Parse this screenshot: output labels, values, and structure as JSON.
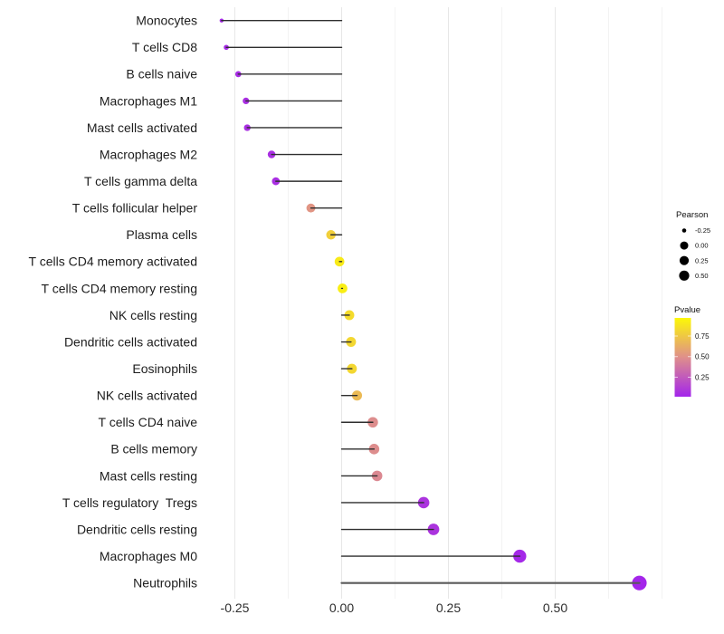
{
  "chart_data": {
    "type": "scatter",
    "variant": "lollipop",
    "orientation": "horizontal",
    "title": "",
    "xlabel": "",
    "ylabel": "",
    "categories": [
      "Monocytes",
      "T cells CD8",
      "B cells naive",
      "Macrophages M1",
      "Mast cells activated",
      "Macrophages M2",
      "T cells gamma delta",
      "T cells follicular helper",
      "Plasma cells",
      "T cells CD4 memory activated",
      "T cells CD4 memory resting",
      "NK cells resting",
      "Dendritic cells activated",
      "Eosinophils",
      "NK cells activated",
      "T cells CD4 naive",
      "B cells memory",
      "Mast cells resting",
      "T cells regulatory  Tregs",
      "Dendritic cells resting",
      "Macrophages M0",
      "Neutrophils"
    ],
    "series": [
      {
        "name": "Pearson",
        "values": [
          -0.281,
          -0.27,
          -0.242,
          -0.224,
          -0.221,
          -0.164,
          -0.154,
          -0.072,
          -0.025,
          -0.005,
          0.002,
          0.018,
          0.022,
          0.024,
          0.036,
          0.073,
          0.076,
          0.083,
          0.192,
          0.215,
          0.417,
          0.697
        ]
      },
      {
        "name": "Pvalue",
        "values": [
          0.03,
          0.04,
          0.05,
          0.06,
          0.06,
          0.06,
          0.06,
          0.52,
          0.8,
          0.93,
          0.95,
          0.86,
          0.84,
          0.84,
          0.7,
          0.48,
          0.48,
          0.46,
          0.08,
          0.08,
          0.03,
          0.02
        ]
      }
    ],
    "x_axis": {
      "tick_labels": [
        "-0.25",
        "0.00",
        "0.25",
        "0.50"
      ],
      "tick_values": [
        -0.25,
        0.0,
        0.25,
        0.5
      ],
      "minor_tick_values": [
        -0.125,
        0.125,
        0.375,
        0.625,
        0.75
      ],
      "range": [
        -0.33,
        0.755
      ],
      "grid": true
    },
    "encoding": {
      "size": "Pearson",
      "color": "Pvalue",
      "color_low": "#A020F0",
      "color_mid": "#E09189",
      "color_high": "#FFFF00"
    }
  },
  "legend": {
    "pearson": {
      "title": "Pearson",
      "break_labels": [
        "-0.25",
        "0.00",
        "0.25",
        "0.50"
      ],
      "break_values": [
        -0.25,
        0.0,
        0.25,
        0.5
      ]
    },
    "pvalue": {
      "title": "Pvalue",
      "tick_labels": [
        "0.75",
        "0.50",
        "0.25"
      ],
      "tick_values": [
        0.75,
        0.5,
        0.25
      ],
      "bar_range": [
        0.013,
        0.97
      ]
    }
  }
}
